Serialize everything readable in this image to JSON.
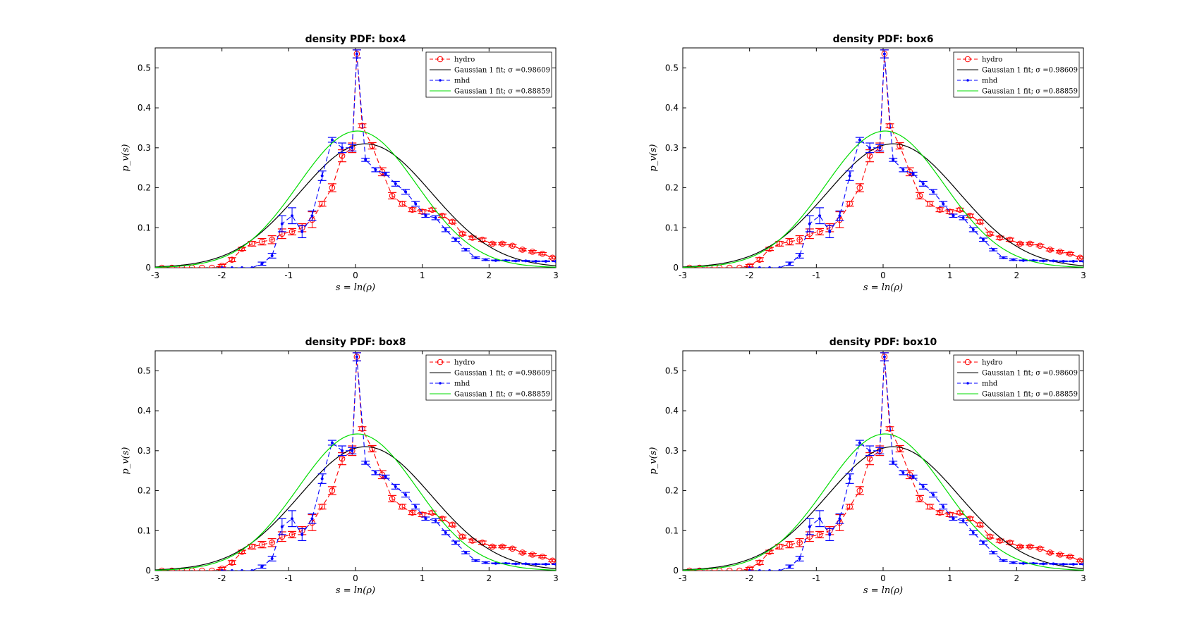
{
  "chart_data": [
    {
      "type": "line",
      "title": "density PDF: box4",
      "xlabel": "s = ln(ρ)",
      "ylabel": "p_v(s)",
      "xlim": [
        -3,
        3
      ],
      "ylim": [
        0,
        0.55
      ],
      "xticks": [
        -3,
        -2,
        -1,
        0,
        1,
        2,
        3
      ],
      "yticks": [
        0,
        0.1,
        0.2,
        0.3,
        0.4,
        0.5
      ],
      "legend_position": "top-right",
      "series": [
        {
          "name": "hydro",
          "style": "dashed-markers-circle",
          "color": "#ff0000",
          "data_ref": "hydro"
        },
        {
          "name": "Gaussian 1 fit; σ =0.98609",
          "style": "solid",
          "color": "#000000",
          "fit": {
            "mu": 0.15,
            "sigma": 0.98609,
            "amp": 0.31
          }
        },
        {
          "name": "mhd",
          "style": "dashed-markers-dot",
          "color": "#0000ff",
          "data_ref": "mhd"
        },
        {
          "name": "Gaussian 1 fit; σ =0.88859",
          "style": "solid",
          "color": "#00dd00",
          "fit": {
            "mu": 0.03,
            "sigma": 0.88859,
            "amp": 0.342
          }
        }
      ]
    },
    {
      "type": "line",
      "title": "density PDF: box6",
      "xlabel": "s = ln(ρ)",
      "ylabel": "p_v(s)",
      "xlim": [
        -3,
        3
      ],
      "ylim": [
        0,
        0.55
      ],
      "xticks": [
        -3,
        -2,
        -1,
        0,
        1,
        2,
        3
      ],
      "yticks": [
        0,
        0.1,
        0.2,
        0.3,
        0.4,
        0.5
      ],
      "legend_position": "top-right",
      "series": [
        {
          "name": "hydro",
          "style": "dashed-markers-circle",
          "color": "#ff0000",
          "data_ref": "hydro"
        },
        {
          "name": "Gaussian 1 fit; σ =0.98609",
          "style": "solid",
          "color": "#000000",
          "fit": {
            "mu": 0.15,
            "sigma": 0.98609,
            "amp": 0.31
          }
        },
        {
          "name": "mhd",
          "style": "dashed-markers-dot",
          "color": "#0000ff",
          "data_ref": "mhd"
        },
        {
          "name": "Gaussian 1 fit; σ =0.88859",
          "style": "solid",
          "color": "#00dd00",
          "fit": {
            "mu": 0.03,
            "sigma": 0.88859,
            "amp": 0.342
          }
        }
      ]
    },
    {
      "type": "line",
      "title": "density PDF: box8",
      "xlabel": "s = ln(ρ)",
      "ylabel": "p_v(s)",
      "xlim": [
        -3,
        3
      ],
      "ylim": [
        0,
        0.55
      ],
      "xticks": [
        -3,
        -2,
        -1,
        0,
        1,
        2,
        3
      ],
      "yticks": [
        0,
        0.1,
        0.2,
        0.3,
        0.4,
        0.5
      ],
      "legend_position": "top-right",
      "series": [
        {
          "name": "hydro",
          "style": "dashed-markers-circle",
          "color": "#ff0000",
          "data_ref": "hydro"
        },
        {
          "name": "Gaussian 1 fit; σ =0.98609",
          "style": "solid",
          "color": "#000000",
          "fit": {
            "mu": 0.15,
            "sigma": 0.98609,
            "amp": 0.31
          }
        },
        {
          "name": "mhd",
          "style": "dashed-markers-dot",
          "color": "#0000ff",
          "data_ref": "mhd"
        },
        {
          "name": "Gaussian 1 fit; σ =0.88859",
          "style": "solid",
          "color": "#00dd00",
          "fit": {
            "mu": 0.03,
            "sigma": 0.88859,
            "amp": 0.342
          }
        }
      ]
    },
    {
      "type": "line",
      "title": "density PDF: box10",
      "xlabel": "s = ln(ρ)",
      "ylabel": "p_v(s)",
      "xlim": [
        -3,
        3
      ],
      "ylim": [
        0,
        0.55
      ],
      "xticks": [
        -3,
        -2,
        -1,
        0,
        1,
        2,
        3
      ],
      "yticks": [
        0,
        0.1,
        0.2,
        0.3,
        0.4,
        0.5
      ],
      "legend_position": "top-right",
      "series": [
        {
          "name": "hydro",
          "style": "dashed-markers-circle",
          "color": "#ff0000",
          "data_ref": "hydro"
        },
        {
          "name": "Gaussian 1 fit; σ =0.98609",
          "style": "solid",
          "color": "#000000",
          "fit": {
            "mu": 0.15,
            "sigma": 0.98609,
            "amp": 0.31
          }
        },
        {
          "name": "mhd",
          "style": "dashed-markers-dot",
          "color": "#0000ff",
          "data_ref": "mhd"
        },
        {
          "name": "Gaussian 1 fit; σ =0.88859",
          "style": "solid",
          "color": "#00dd00",
          "fit": {
            "mu": 0.03,
            "sigma": 0.88859,
            "amp": 0.342
          }
        }
      ]
    }
  ],
  "shared_data": {
    "hydro": {
      "x": [
        -2.9,
        -2.75,
        -2.6,
        -2.45,
        -2.3,
        -2.15,
        -2.0,
        -1.85,
        -1.7,
        -1.55,
        -1.4,
        -1.25,
        -1.1,
        -0.95,
        -0.8,
        -0.65,
        -0.5,
        -0.35,
        -0.2,
        -0.05,
        0.02,
        0.1,
        0.25,
        0.4,
        0.55,
        0.7,
        0.85,
        1.0,
        1.15,
        1.3,
        1.45,
        1.6,
        1.75,
        1.9,
        2.05,
        2.2,
        2.35,
        2.5,
        2.65,
        2.8,
        2.95
      ],
      "y": [
        0.0,
        0.0,
        0.0,
        0.0,
        0.0,
        0.0,
        0.005,
        0.02,
        0.047,
        0.06,
        0.065,
        0.07,
        0.085,
        0.09,
        0.1,
        0.12,
        0.16,
        0.2,
        0.28,
        0.3,
        0.535,
        0.355,
        0.305,
        0.24,
        0.18,
        0.16,
        0.145,
        0.14,
        0.145,
        0.13,
        0.115,
        0.085,
        0.075,
        0.07,
        0.06,
        0.06,
        0.055,
        0.045,
        0.04,
        0.035,
        0.025
      ],
      "err": [
        0.0,
        0.0,
        0.0,
        0.0,
        0.0,
        0.0,
        0.003,
        0.005,
        0.004,
        0.006,
        0.008,
        0.01,
        0.012,
        0.008,
        0.01,
        0.02,
        0.006,
        0.01,
        0.015,
        0.012,
        0.01,
        0.005,
        0.008,
        0.01,
        0.008,
        0.006,
        0.005,
        0.005,
        0.004,
        0.004,
        0.004,
        0.004,
        0.004,
        0.004,
        0.003,
        0.003,
        0.003,
        0.003,
        0.003,
        0.003,
        0.003
      ]
    },
    "mhd": {
      "x": [
        -2.0,
        -1.85,
        -1.7,
        -1.55,
        -1.4,
        -1.25,
        -1.1,
        -0.95,
        -0.8,
        -0.65,
        -0.5,
        -0.35,
        -0.2,
        -0.05,
        0.02,
        0.15,
        0.3,
        0.45,
        0.6,
        0.75,
        0.9,
        1.05,
        1.2,
        1.35,
        1.5,
        1.65,
        1.8,
        1.95,
        2.1,
        2.25,
        2.4,
        2.55,
        2.7,
        2.85,
        3.0
      ],
      "y": [
        0.0,
        0.0,
        0.0,
        0.0,
        0.01,
        0.03,
        0.11,
        0.13,
        0.09,
        0.13,
        0.23,
        0.32,
        0.3,
        0.3,
        0.535,
        0.27,
        0.245,
        0.235,
        0.21,
        0.19,
        0.16,
        0.13,
        0.125,
        0.095,
        0.07,
        0.045,
        0.025,
        0.02,
        0.018,
        0.018,
        0.017,
        0.017,
        0.016,
        0.016,
        0.016
      ],
      "err": [
        0.0,
        0.0,
        0.0,
        0.0,
        0.004,
        0.006,
        0.02,
        0.02,
        0.015,
        0.012,
        0.012,
        0.006,
        0.012,
        0.008,
        0.01,
        0.004,
        0.005,
        0.004,
        0.006,
        0.006,
        0.006,
        0.004,
        0.005,
        0.005,
        0.004,
        0.003,
        0.002,
        0.002,
        0.001,
        0.001,
        0.001,
        0.001,
        0.001,
        0.001,
        0.001
      ]
    }
  }
}
